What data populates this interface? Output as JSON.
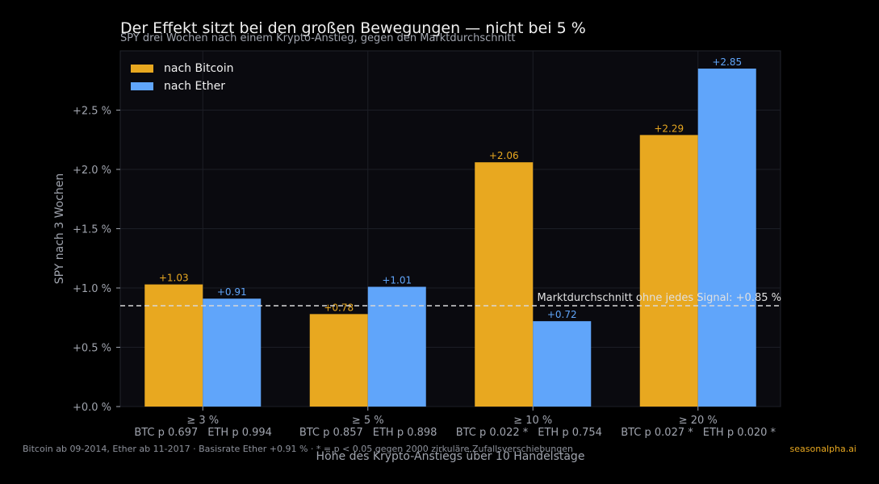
{
  "title": "Der Effekt sitzt bei den großen Bewegungen — nicht bei 5 %",
  "subtitle": "SPY drei Wochen nach einem Krypto-Anstieg, gegen den Marktdurchschnitt",
  "footnote": "Bitcoin ab 09-2014, Ether ab 11-2017 · Basisrate Ether +0.91 % · * = p < 0.05 gegen 2000 zirkuläre Zufallsverschiebungen",
  "brand": "seasonalpha.ai",
  "colors": {
    "bitcoin": "#e8a820",
    "ether": "#60a5fa",
    "background": "#0a0a0f",
    "page": "#000000"
  },
  "chart_data": {
    "type": "bar",
    "xlabel": "Höhe des Krypto-Anstiegs über 10 Handelstage",
    "ylabel": "SPY nach 3 Wochen",
    "ylim": [
      0,
      3.0
    ],
    "yticks": [
      "+0.0 %",
      "+0.5 %",
      "+1.0 %",
      "+1.5 %",
      "+2.0 %",
      "+2.5 %"
    ],
    "ytick_values": [
      0,
      0.5,
      1.0,
      1.5,
      2.0,
      2.5
    ],
    "categories": [
      "≥ 3 %",
      "≥ 5 %",
      "≥ 10 %",
      "≥ 20 %"
    ],
    "category_sublabels": [
      [
        "BTC p 0.697",
        "ETH p 0.994"
      ],
      [
        "BTC p 0.857",
        "ETH p 0.898"
      ],
      [
        "BTC p 0.022 *",
        "ETH p 0.754"
      ],
      [
        "BTC p 0.027 *",
        "ETH p 0.020 *"
      ]
    ],
    "series": [
      {
        "name": "nach Bitcoin",
        "values": [
          1.03,
          0.78,
          2.06,
          2.29
        ],
        "labels": [
          "+1.03",
          "+0.78",
          "+2.06",
          "+2.29"
        ]
      },
      {
        "name": "nach Ether",
        "values": [
          0.91,
          1.01,
          0.72,
          2.85
        ],
        "labels": [
          "+0.91",
          "+1.01",
          "+0.72",
          "+2.85"
        ]
      }
    ],
    "reference_line": {
      "value": 0.85,
      "label": "Marktdurchschnitt ohne jedes Signal: +0.85 %"
    },
    "legend": "top-left",
    "grid": true
  }
}
